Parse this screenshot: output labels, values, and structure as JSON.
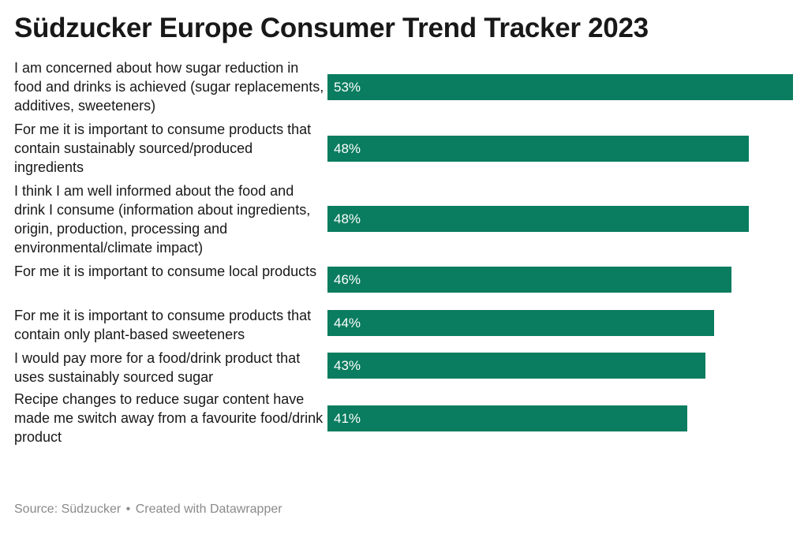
{
  "title": "Südzucker Europe Consumer Trend Tracker 2023",
  "footer": {
    "source": "Source: Südzucker",
    "separator": "•",
    "created": "Created with Datawrapper"
  },
  "colors": {
    "bar": "#0a7c5f",
    "label": "#ffffff",
    "text": "#181818",
    "footer": "#8a8a8a"
  },
  "chart_data": {
    "type": "bar",
    "orientation": "horizontal",
    "title": "Südzucker Europe Consumer Trend Tracker 2023",
    "value_suffix": "%",
    "xlim": [
      0,
      53
    ],
    "grid": false,
    "legend": "none",
    "categories": [
      "I am concerned about how sugar reduction in food and drinks is achieved (sugar replacements, additives, sweeteners)",
      "For me it is important to consume products that contain sustainably sourced/produced ingredients",
      "I think I am well informed about the food and drink I consume (information about ingredients, origin, production, processing and environmental/climate impact)",
      "For me it is important to consume local products",
      "For me it is important to consume products that contain only plant-based sweeteners",
      "I would pay more for a food/drink product that uses sustainably sourced sugar",
      "Recipe changes to reduce sugar content have made me switch away from a favourite food/drink product"
    ],
    "values": [
      53,
      48,
      48,
      46,
      44,
      43,
      41
    ],
    "labels": [
      "53%",
      "48%",
      "48%",
      "46%",
      "44%",
      "43%",
      "41%"
    ]
  }
}
